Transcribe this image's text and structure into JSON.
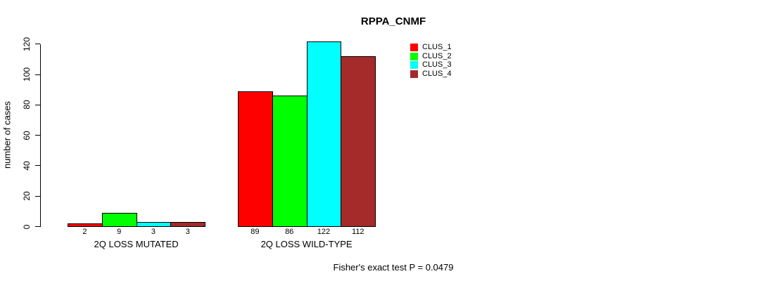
{
  "chart_data": {
    "type": "bar",
    "title": "RPPA_CNMF",
    "xlabel": "",
    "ylabel": "number of cases",
    "ylim": [
      0,
      120
    ],
    "yticks": [
      0,
      20,
      40,
      60,
      80,
      100,
      120
    ],
    "grid": false,
    "legend_position": "right-top",
    "categories": [
      "2Q LOSS MUTATED",
      "2Q LOSS WILD-TYPE"
    ],
    "series": [
      {
        "name": "CLUS_1",
        "color": "#FF0000",
        "values": [
          2,
          89
        ]
      },
      {
        "name": "CLUS_2",
        "color": "#00FF00",
        "values": [
          9,
          86
        ]
      },
      {
        "name": "CLUS_3",
        "color": "#00FFFF",
        "values": [
          3,
          122
        ]
      },
      {
        "name": "CLUS_4",
        "color": "#A52A2A",
        "values": [
          3,
          112
        ]
      }
    ],
    "bar_value_labels": [
      [
        2,
        9,
        3,
        3
      ],
      [
        89,
        86,
        122,
        112
      ]
    ],
    "footnote": "Fisher's exact test P = 0.0479"
  }
}
